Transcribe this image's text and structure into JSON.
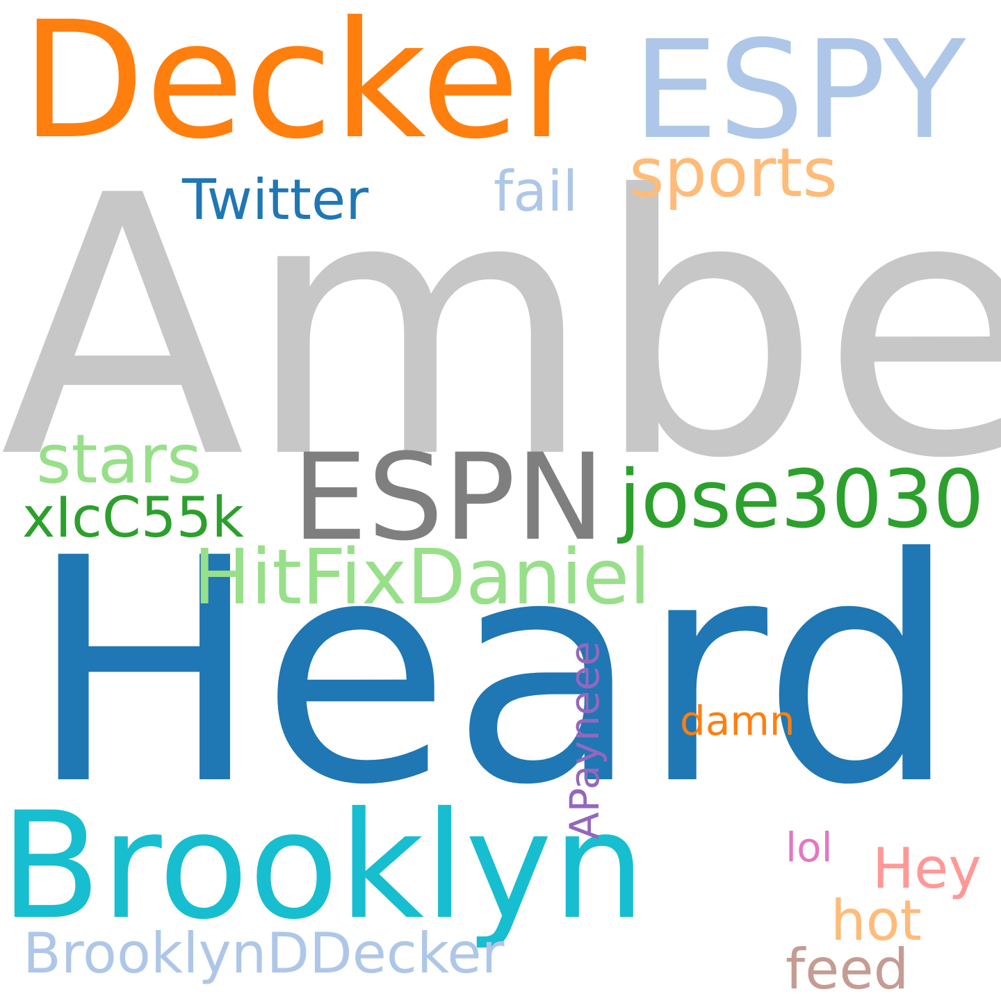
{
  "colors": {
    "background": "#ffffff",
    "gray_light": "#c7c7c7",
    "gray_dark": "#7f7f7f",
    "blue": "#1f77b4",
    "blue_light": "#aec7e8",
    "orange": "#ff7f0e",
    "orange_light": "#ffbb78",
    "green": "#2ca02c",
    "green_light": "#98df8a",
    "cyan": "#17becf",
    "purple": "#9467bd",
    "pink": "#e377c2",
    "salmon": "#ff9896",
    "brown_light": "#c49c94"
  },
  "words": [
    {
      "id": "amber",
      "text": "Amber",
      "color": "#c7c7c7",
      "orientation": "horizontal"
    },
    {
      "id": "heard",
      "text": "Heard",
      "color": "#1f77b4",
      "orientation": "horizontal"
    },
    {
      "id": "decker",
      "text": "Decker",
      "color": "#ff7f0e",
      "orientation": "horizontal"
    },
    {
      "id": "espy",
      "text": "ESPY",
      "color": "#aec7e8",
      "orientation": "horizontal"
    },
    {
      "id": "brooklyn",
      "text": "Brooklyn",
      "color": "#17becf",
      "orientation": "horizontal"
    },
    {
      "id": "espn",
      "text": "ESPN",
      "color": "#7f7f7f",
      "orientation": "horizontal"
    },
    {
      "id": "jose3030",
      "text": "jose3030",
      "color": "#2ca02c",
      "orientation": "horizontal"
    },
    {
      "id": "hitfix",
      "text": "HitFixDaniel",
      "color": "#98df8a",
      "orientation": "horizontal"
    },
    {
      "id": "stars",
      "text": "stars",
      "color": "#98df8a",
      "orientation": "horizontal"
    },
    {
      "id": "sports",
      "text": "sports",
      "color": "#ffbb78",
      "orientation": "horizontal"
    },
    {
      "id": "twitter",
      "text": "Twitter",
      "color": "#1f77b4",
      "orientation": "horizontal"
    },
    {
      "id": "fail",
      "text": "fail",
      "color": "#aec7e8",
      "orientation": "horizontal"
    },
    {
      "id": "xicc",
      "text": "xIcC55k",
      "color": "#2ca02c",
      "orientation": "horizontal"
    },
    {
      "id": "bdd",
      "text": "BrooklynDDecker",
      "color": "#aec7e8",
      "orientation": "horizontal"
    },
    {
      "id": "hey",
      "text": "Hey",
      "color": "#ff9896",
      "orientation": "horizontal"
    },
    {
      "id": "hot",
      "text": "hot",
      "color": "#ffbb78",
      "orientation": "horizontal"
    },
    {
      "id": "feed",
      "text": "feed",
      "color": "#c49c94",
      "orientation": "horizontal"
    },
    {
      "id": "apayneee",
      "text": "APayneee",
      "color": "#9467bd",
      "orientation": "vertical"
    },
    {
      "id": "damn",
      "text": "damn",
      "color": "#ff7f0e",
      "orientation": "horizontal"
    },
    {
      "id": "lol",
      "text": "lol",
      "color": "#e377c2",
      "orientation": "horizontal"
    }
  ]
}
